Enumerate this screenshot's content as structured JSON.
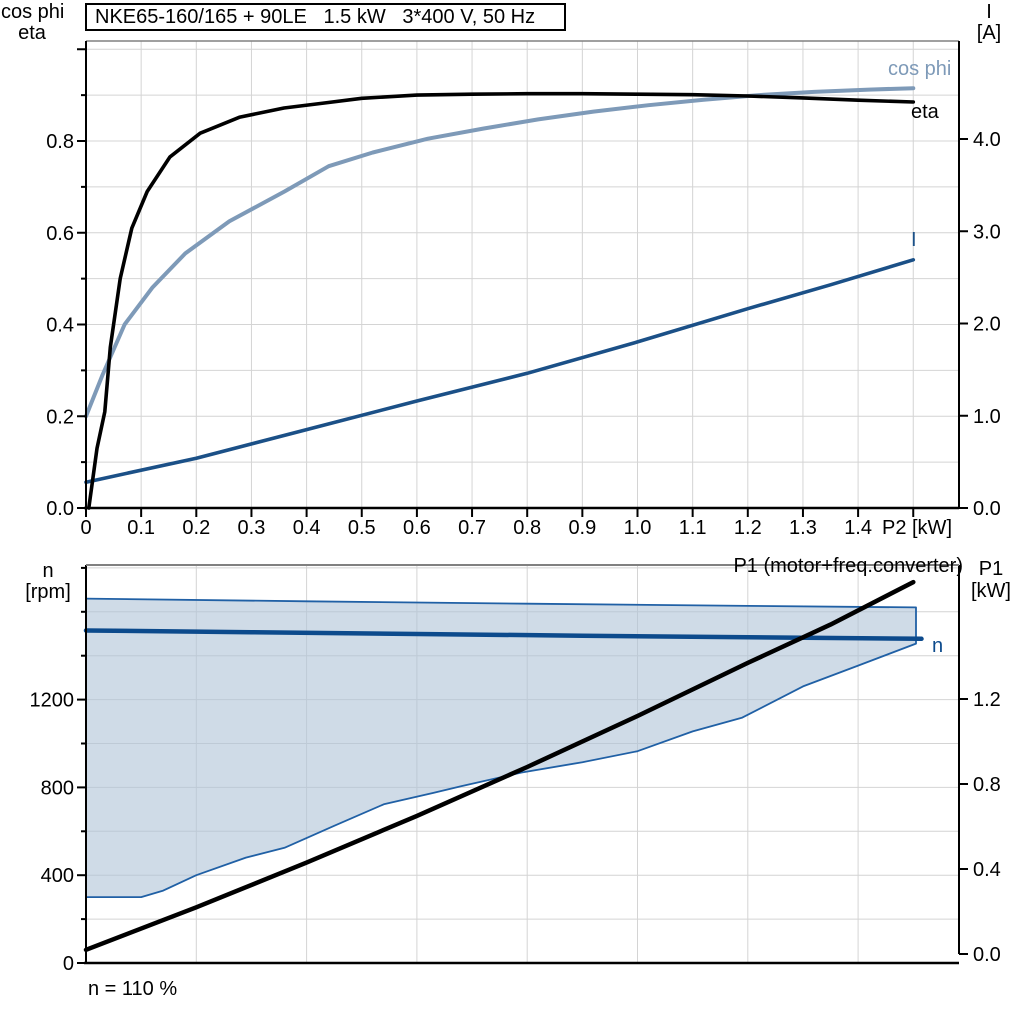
{
  "header": {
    "title": "NKE65-160/165 + 90LE   1.5 kW   3*400 V, 50 Hz"
  },
  "colors": {
    "eta": "#000000",
    "cos_phi": "#7e9ab8",
    "current": "#1b5087",
    "n_curve": "#0c4a8c",
    "envelope_line": "#2060a5",
    "envelope_fill": "rgba(175,195,215,0.6)",
    "p1_line": "#000000",
    "grid": "#d4d4d4",
    "axis": "#000000",
    "frame_gray": "#808080"
  },
  "top_chart": {
    "left_axis_title_line1": "cos phi",
    "left_axis_title_line2": "eta",
    "right_axis_title_line1": "I",
    "right_axis_title_line2": "[A]",
    "x_axis_unit": "P2 [kW]",
    "x_ticks": [
      "0",
      "0.1",
      "0.2",
      "0.3",
      "0.4",
      "0.5",
      "0.6",
      "0.7",
      "0.8",
      "0.9",
      "1.0",
      "1.1",
      "1.2",
      "1.3",
      "1.4"
    ],
    "left_ticks": [
      "0.0",
      "0.2",
      "0.4",
      "0.6",
      "0.8"
    ],
    "right_ticks": [
      "0.0",
      "1.0",
      "2.0",
      "3.0",
      "4.0"
    ],
    "labels": {
      "cos_phi": "cos phi",
      "eta": "eta",
      "current": "I"
    }
  },
  "bottom_chart": {
    "left_axis_title_line1": "n",
    "left_axis_title_line2": "[rpm]",
    "right_axis_title_line1": "P1",
    "right_axis_title_line2": "[kW]",
    "left_ticks": [
      "0",
      "400",
      "800",
      "1200"
    ],
    "right_ticks": [
      "0.0",
      "0.4",
      "0.8",
      "1.2"
    ],
    "p1_curve_label": "P1 (motor+freq.converter)",
    "n_curve_label": "n",
    "annotation": "n = 110 %"
  },
  "chart_data": [
    {
      "type": "line",
      "title": "NKE65-160/165 + 90LE   1.5 kW   3*400 V, 50 Hz",
      "xlabel": "P2 [kW]",
      "ylabel_left": "cos phi / eta",
      "ylabel_right": "I [A]",
      "xlim": [
        0,
        1.58
      ],
      "ylim_left": [
        0,
        1.02
      ],
      "ylim_right": [
        0,
        5.06
      ],
      "x_tick_step": 0.1,
      "grid": true,
      "series": [
        {
          "name": "I",
          "id": "current-curve",
          "axis": "right",
          "color": "#1b5087",
          "width": 3.6,
          "points": [
            [
              0,
              0.28
            ],
            [
              0.2,
              0.54
            ],
            [
              0.4,
              0.85
            ],
            [
              0.6,
              1.16
            ],
            [
              0.8,
              1.46
            ],
            [
              1.0,
              1.8
            ],
            [
              1.2,
              2.16
            ],
            [
              1.35,
              2.42
            ],
            [
              1.5,
              2.69
            ]
          ]
        },
        {
          "name": "cos phi",
          "id": "cos-phi-curve",
          "axis": "left",
          "color": "#7e9ab8",
          "width": 4,
          "points": [
            [
              0,
              0.2
            ],
            [
              0.03,
              0.29
            ],
            [
              0.07,
              0.4
            ],
            [
              0.12,
              0.48
            ],
            [
              0.18,
              0.555
            ],
            [
              0.26,
              0.625
            ],
            [
              0.36,
              0.69
            ],
            [
              0.44,
              0.745
            ],
            [
              0.52,
              0.775
            ],
            [
              0.62,
              0.805
            ],
            [
              0.72,
              0.827
            ],
            [
              0.82,
              0.847
            ],
            [
              0.92,
              0.864
            ],
            [
              1.02,
              0.878
            ],
            [
              1.12,
              0.89
            ],
            [
              1.22,
              0.9
            ],
            [
              1.32,
              0.907
            ],
            [
              1.42,
              0.912
            ],
            [
              1.5,
              0.915
            ]
          ]
        },
        {
          "name": "eta",
          "id": "eta-curve",
          "axis": "left",
          "color": "#000000",
          "width": 3.6,
          "points": [
            [
              0.005,
              0
            ],
            [
              0.02,
              0.13
            ],
            [
              0.034,
              0.21
            ],
            [
              0.044,
              0.35
            ],
            [
              0.062,
              0.5
            ],
            [
              0.083,
              0.61
            ],
            [
              0.111,
              0.69
            ],
            [
              0.152,
              0.765
            ],
            [
              0.207,
              0.817
            ],
            [
              0.279,
              0.852
            ],
            [
              0.359,
              0.872
            ],
            [
              0.434,
              0.883
            ],
            [
              0.5,
              0.893
            ],
            [
              0.6,
              0.9
            ],
            [
              0.7,
              0.902
            ],
            [
              0.8,
              0.903
            ],
            [
              0.9,
              0.903
            ],
            [
              1.0,
              0.902
            ],
            [
              1.1,
              0.901
            ],
            [
              1.2,
              0.898
            ],
            [
              1.3,
              0.894
            ],
            [
              1.4,
              0.889
            ],
            [
              1.5,
              0.885
            ]
          ]
        }
      ]
    },
    {
      "type": "line",
      "xlabel": "P2 [kW]",
      "ylabel_left": "n [rpm]",
      "ylabel_right": "P1 [kW]",
      "xlim": [
        0,
        1.58
      ],
      "ylim_left": [
        0,
        1813
      ],
      "ylim_right": [
        0,
        1.83
      ],
      "x_tick_step": 0.2,
      "grid": true,
      "annotation": "n = 110 %",
      "series": [
        {
          "name": "speed range envelope upper",
          "id": "envelope-upper",
          "role": "envelope-upper",
          "axis": "left",
          "color": "#2060a5",
          "width": 1.8,
          "points": [
            [
              0,
              1660
            ],
            [
              0.4,
              1648
            ],
            [
              0.8,
              1637
            ],
            [
              1.2,
              1627
            ],
            [
              1.505,
              1620
            ]
          ]
        },
        {
          "name": "speed range envelope lower",
          "id": "envelope-lower",
          "role": "envelope-lower",
          "axis": "left",
          "color": "#2060a5",
          "width": 1.8,
          "points": [
            [
              0,
              300
            ],
            [
              0.1,
              300
            ],
            [
              0.14,
              330
            ],
            [
              0.2,
              400
            ],
            [
              0.29,
              480
            ],
            [
              0.36,
              525
            ],
            [
              0.45,
              625
            ],
            [
              0.54,
              723
            ],
            [
              0.63,
              775
            ],
            [
              0.68,
              805
            ],
            [
              0.79,
              868
            ],
            [
              0.9,
              915
            ],
            [
              1.0,
              965
            ],
            [
              1.1,
              1055
            ],
            [
              1.19,
              1118
            ],
            [
              1.3,
              1260
            ],
            [
              1.4,
              1355
            ],
            [
              1.505,
              1455
            ]
          ]
        },
        {
          "name": "n",
          "id": "n-curve",
          "axis": "left",
          "color": "#0c4a8c",
          "width": 4.5,
          "points": [
            [
              0,
              1515
            ],
            [
              0.3,
              1507
            ],
            [
              0.6,
              1499
            ],
            [
              0.9,
              1491
            ],
            [
              1.2,
              1484
            ],
            [
              1.515,
              1477
            ]
          ]
        },
        {
          "name": "P1 (motor+freq.converter)",
          "id": "p1-curve",
          "axis": "right",
          "color": "#000000",
          "width": 4.5,
          "points": [
            [
              0,
              0.02
            ],
            [
              0.2,
              0.22
            ],
            [
              0.4,
              0.43
            ],
            [
              0.6,
              0.65
            ],
            [
              0.8,
              0.88
            ],
            [
              1.0,
              1.12
            ],
            [
              1.2,
              1.37
            ],
            [
              1.35,
              1.55
            ],
            [
              1.5,
              1.75
            ]
          ]
        }
      ]
    }
  ]
}
